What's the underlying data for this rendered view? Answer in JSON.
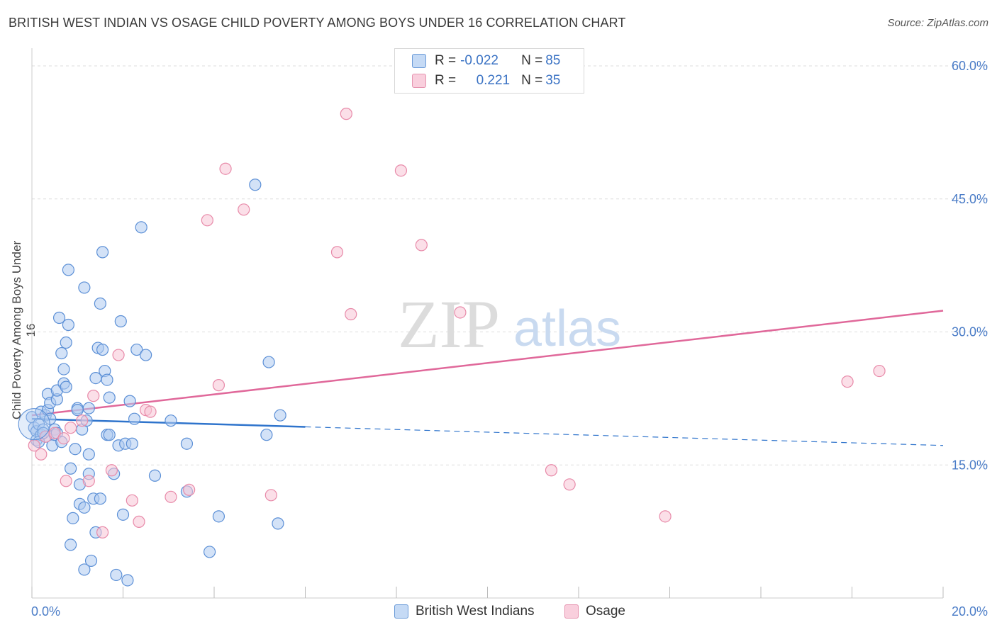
{
  "header": {
    "title": "BRITISH WEST INDIAN VS OSAGE CHILD POVERTY AMONG BOYS UNDER 16 CORRELATION CHART",
    "source": "Source: ZipAtlas.com"
  },
  "watermark": {
    "zip": "ZIP",
    "atlas": "atlas"
  },
  "legend": {
    "rows": [
      {
        "r_label": "R = ",
        "r_value": "-0.022",
        "n_label": "N = ",
        "n_value": "85"
      },
      {
        "r_label": "R = ",
        "r_value": "0.221",
        "n_label": "N = ",
        "n_value": "35"
      }
    ]
  },
  "bottom_legend": {
    "items": [
      {
        "label": "British West Indians"
      },
      {
        "label": "Osage"
      }
    ]
  },
  "colors": {
    "blue_fill": "#aecbf0",
    "blue_stroke": "#5b8fd6",
    "blue_line": "#2f74cc",
    "pink_fill": "#f7c5d6",
    "pink_stroke": "#e88aa9",
    "pink_line": "#e0689a",
    "tick_text": "#4a7cc7",
    "grid": "#dddddd"
  },
  "chart_data": {
    "type": "scatter",
    "title": "BRITISH WEST INDIAN VS OSAGE CHILD POVERTY AMONG BOYS UNDER 16 CORRELATION CHART",
    "xlabel": "",
    "ylabel": "Child Poverty Among Boys Under 16",
    "xlim": [
      0,
      20
    ],
    "ylim": [
      0,
      62
    ],
    "x_tick_labels": [
      "0.0%",
      "20.0%"
    ],
    "y_ticks": [
      15,
      30,
      45,
      60
    ],
    "y_tick_labels": [
      "15.0%",
      "30.0%",
      "45.0%",
      "60.0%"
    ],
    "grid": true,
    "legend_position": "top-center",
    "series": [
      {
        "name": "British West Indians",
        "color": "#aecbf0",
        "points": [
          [
            0.0,
            20.4
          ],
          [
            0.05,
            19.2
          ],
          [
            0.1,
            18.8
          ],
          [
            0.1,
            17.8
          ],
          [
            0.15,
            19.6
          ],
          [
            0.2,
            18.4
          ],
          [
            0.2,
            21.0
          ],
          [
            0.25,
            19.0
          ],
          [
            0.3,
            18.2
          ],
          [
            0.3,
            20.6
          ],
          [
            0.35,
            23.0
          ],
          [
            0.35,
            21.2
          ],
          [
            0.4,
            22.0
          ],
          [
            0.45,
            17.2
          ],
          [
            0.5,
            19.0
          ],
          [
            0.5,
            18.4
          ],
          [
            0.55,
            22.4
          ],
          [
            0.55,
            23.4
          ],
          [
            0.6,
            31.6
          ],
          [
            0.65,
            27.6
          ],
          [
            0.7,
            25.8
          ],
          [
            0.7,
            24.2
          ],
          [
            0.75,
            28.8
          ],
          [
            0.75,
            23.8
          ],
          [
            0.8,
            37.0
          ],
          [
            0.8,
            30.8
          ],
          [
            0.85,
            6.0
          ],
          [
            0.85,
            14.6
          ],
          [
            0.9,
            9.0
          ],
          [
            0.95,
            16.8
          ],
          [
            1.0,
            21.4
          ],
          [
            1.0,
            21.2
          ],
          [
            1.05,
            12.8
          ],
          [
            1.05,
            10.6
          ],
          [
            1.1,
            19.0
          ],
          [
            1.15,
            10.2
          ],
          [
            1.15,
            3.2
          ],
          [
            1.15,
            35.0
          ],
          [
            1.2,
            20.0
          ],
          [
            1.25,
            14.0
          ],
          [
            1.25,
            16.2
          ],
          [
            1.3,
            4.2
          ],
          [
            1.35,
            11.2
          ],
          [
            1.4,
            24.8
          ],
          [
            1.4,
            7.4
          ],
          [
            1.45,
            28.2
          ],
          [
            1.5,
            33.2
          ],
          [
            1.5,
            11.2
          ],
          [
            1.55,
            28.0
          ],
          [
            1.55,
            39.0
          ],
          [
            1.6,
            25.6
          ],
          [
            1.65,
            18.4
          ],
          [
            1.65,
            24.6
          ],
          [
            1.7,
            22.6
          ],
          [
            1.7,
            18.4
          ],
          [
            1.8,
            14.0
          ],
          [
            1.85,
            2.6
          ],
          [
            1.9,
            17.2
          ],
          [
            1.95,
            31.2
          ],
          [
            2.0,
            9.4
          ],
          [
            2.05,
            17.4
          ],
          [
            2.1,
            2.0
          ],
          [
            2.15,
            22.2
          ],
          [
            2.2,
            17.4
          ],
          [
            2.25,
            20.2
          ],
          [
            2.3,
            28.0
          ],
          [
            2.4,
            41.8
          ],
          [
            2.5,
            27.4
          ],
          [
            2.7,
            13.8
          ],
          [
            3.05,
            20.0
          ],
          [
            3.4,
            17.4
          ],
          [
            3.4,
            12.0
          ],
          [
            3.9,
            5.2
          ],
          [
            4.1,
            9.2
          ],
          [
            4.9,
            46.6
          ],
          [
            5.15,
            18.4
          ],
          [
            5.2,
            26.6
          ],
          [
            5.45,
            20.6
          ],
          [
            5.4,
            8.4
          ],
          [
            0.15,
            17.6
          ],
          [
            0.25,
            18.6
          ],
          [
            0.4,
            20.2
          ],
          [
            0.55,
            18.6
          ],
          [
            0.65,
            17.6
          ],
          [
            1.25,
            21.4
          ]
        ]
      },
      {
        "name": "Osage",
        "color": "#f7c5d6",
        "points": [
          [
            0.05,
            17.2
          ],
          [
            0.2,
            16.2
          ],
          [
            0.3,
            18.2
          ],
          [
            0.5,
            18.6
          ],
          [
            0.7,
            18.0
          ],
          [
            0.75,
            13.2
          ],
          [
            0.85,
            19.2
          ],
          [
            1.1,
            20.0
          ],
          [
            1.25,
            13.2
          ],
          [
            1.35,
            22.8
          ],
          [
            1.55,
            7.4
          ],
          [
            1.75,
            14.4
          ],
          [
            1.9,
            27.4
          ],
          [
            2.2,
            11.0
          ],
          [
            2.35,
            8.6
          ],
          [
            2.5,
            21.2
          ],
          [
            2.6,
            21.0
          ],
          [
            3.05,
            11.4
          ],
          [
            3.45,
            12.2
          ],
          [
            3.85,
            42.6
          ],
          [
            4.1,
            24.0
          ],
          [
            4.25,
            48.4
          ],
          [
            4.65,
            43.8
          ],
          [
            5.25,
            11.6
          ],
          [
            6.7,
            39.0
          ],
          [
            6.9,
            54.6
          ],
          [
            7.0,
            32.0
          ],
          [
            8.1,
            48.2
          ],
          [
            8.55,
            39.8
          ],
          [
            9.4,
            32.2
          ],
          [
            11.4,
            14.4
          ],
          [
            11.8,
            12.8
          ],
          [
            13.9,
            9.2
          ],
          [
            17.9,
            24.4
          ],
          [
            18.6,
            25.6
          ]
        ]
      }
    ],
    "trend_lines": [
      {
        "series": "British West Indians",
        "x": [
          0,
          20
        ],
        "y": [
          20.2,
          17.2
        ],
        "solid_until_x": 6
      },
      {
        "series": "Osage",
        "x": [
          0,
          20
        ],
        "y": [
          20.6,
          32.4
        ]
      }
    ]
  }
}
